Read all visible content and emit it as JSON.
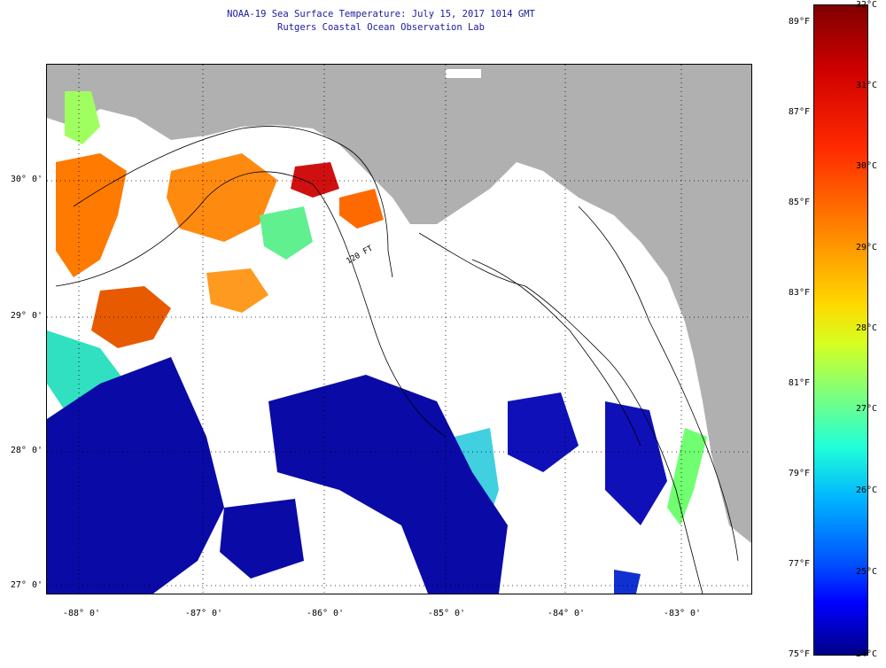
{
  "header": {
    "title": "NOAA-19 Sea Surface Temperature:  July 15, 2017 1014 GMT",
    "subtitle": "Rutgers Coastal Ocean Observation Lab"
  },
  "map": {
    "latitude_labels": [
      "30° 0'",
      "29° 0'",
      "28° 0'",
      "27° 0'"
    ],
    "longitude_labels": [
      "-88° 0'",
      "-87° 0'",
      "-86° 0'",
      "-85° 0'",
      "-84° 0'",
      "-83° 0'"
    ],
    "contour_label": "120 FT",
    "colors": {
      "land": "#b0b0b0",
      "cloud": "#ffffff",
      "warm": "#ff6a00",
      "hot": "#d01010",
      "cool": "#0a0aa6"
    }
  },
  "colorbar": {
    "fahrenheit_labels": [
      "89°F",
      "87°F",
      "85°F",
      "83°F",
      "81°F",
      "79°F",
      "77°F",
      "75°F"
    ],
    "celsius_labels": [
      "32°C",
      "31°C",
      "30°C",
      "29°C",
      "28°C",
      "27°C",
      "26°C",
      "25°C",
      "24°C"
    ]
  }
}
